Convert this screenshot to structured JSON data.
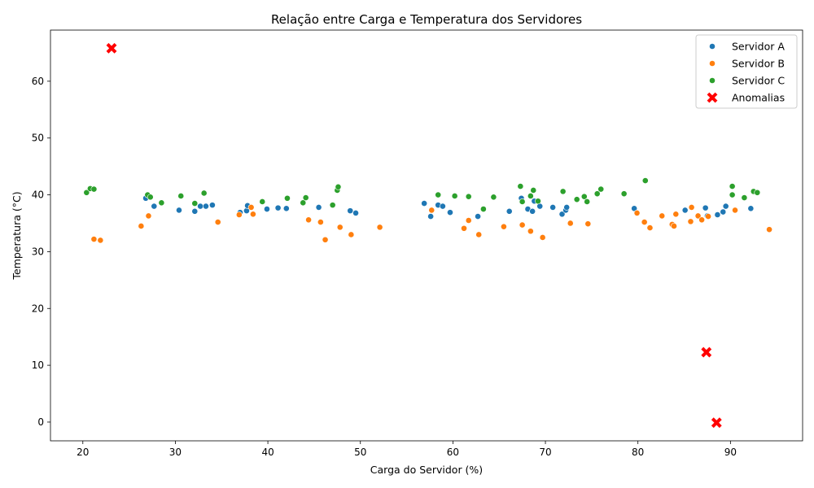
{
  "chart_data": {
    "type": "scatter",
    "title": "Relação entre Carga e Temperatura dos Servidores",
    "xlabel": "Carga do Servidor (%)",
    "ylabel": "Temperatura (°C)",
    "xlim": [
      16.5,
      97.8
    ],
    "ylim": [
      -3.3,
      69.0
    ],
    "xticks": [
      20,
      30,
      40,
      50,
      60,
      70,
      80,
      90
    ],
    "yticks": [
      0,
      10,
      20,
      30,
      40,
      50,
      60
    ],
    "grid": false,
    "legend_position": "top-right",
    "series": [
      {
        "name": "Servidor A",
        "color": "#1f77b4",
        "marker": "circle",
        "points": [
          [
            26.8,
            39.4
          ],
          [
            27.7,
            38.0
          ],
          [
            30.4,
            37.3
          ],
          [
            32.1,
            37.1
          ],
          [
            32.7,
            38.0
          ],
          [
            33.3,
            38.0
          ],
          [
            34.0,
            38.2
          ],
          [
            37.0,
            36.9
          ],
          [
            37.7,
            37.2
          ],
          [
            37.8,
            38.1
          ],
          [
            39.9,
            37.5
          ],
          [
            41.1,
            37.7
          ],
          [
            42.0,
            37.6
          ],
          [
            45.5,
            37.8
          ],
          [
            48.9,
            37.2
          ],
          [
            49.5,
            36.8
          ],
          [
            56.9,
            38.5
          ],
          [
            57.6,
            36.2
          ],
          [
            58.4,
            38.2
          ],
          [
            58.9,
            38.0
          ],
          [
            59.7,
            36.9
          ],
          [
            62.7,
            36.2
          ],
          [
            66.1,
            37.1
          ],
          [
            67.4,
            39.4
          ],
          [
            68.1,
            37.5
          ],
          [
            68.6,
            37.1
          ],
          [
            68.8,
            38.9
          ],
          [
            69.4,
            38.0
          ],
          [
            70.8,
            37.8
          ],
          [
            71.8,
            36.6
          ],
          [
            72.2,
            37.3
          ],
          [
            72.3,
            37.8
          ],
          [
            79.6,
            37.6
          ],
          [
            85.1,
            37.3
          ],
          [
            87.3,
            37.7
          ],
          [
            87.5,
            36.3
          ],
          [
            88.6,
            36.5
          ],
          [
            89.2,
            37.0
          ],
          [
            89.5,
            38.0
          ],
          [
            92.2,
            37.6
          ]
        ]
      },
      {
        "name": "Servidor B",
        "color": "#ff7f0e",
        "marker": "circle",
        "points": [
          [
            21.2,
            32.2
          ],
          [
            21.9,
            32.0
          ],
          [
            26.3,
            34.5
          ],
          [
            27.1,
            36.3
          ],
          [
            34.6,
            35.2
          ],
          [
            36.9,
            36.5
          ],
          [
            38.2,
            37.8
          ],
          [
            38.4,
            36.6
          ],
          [
            44.4,
            35.6
          ],
          [
            45.7,
            35.2
          ],
          [
            46.2,
            32.1
          ],
          [
            47.8,
            34.3
          ],
          [
            49.0,
            33.0
          ],
          [
            52.1,
            34.3
          ],
          [
            57.7,
            37.3
          ],
          [
            61.2,
            34.1
          ],
          [
            61.7,
            35.5
          ],
          [
            62.8,
            33.0
          ],
          [
            65.5,
            34.4
          ],
          [
            67.5,
            34.7
          ],
          [
            68.4,
            33.6
          ],
          [
            69.7,
            32.5
          ],
          [
            72.7,
            35.0
          ],
          [
            74.6,
            34.9
          ],
          [
            79.9,
            36.8
          ],
          [
            80.7,
            35.2
          ],
          [
            81.3,
            34.2
          ],
          [
            82.6,
            36.3
          ],
          [
            83.7,
            34.8
          ],
          [
            83.9,
            34.5
          ],
          [
            84.1,
            36.6
          ],
          [
            85.7,
            35.3
          ],
          [
            85.8,
            37.8
          ],
          [
            86.5,
            36.3
          ],
          [
            86.9,
            35.6
          ],
          [
            87.6,
            36.2
          ],
          [
            90.5,
            37.3
          ],
          [
            94.2,
            33.9
          ]
        ]
      },
      {
        "name": "Servidor C",
        "color": "#2ca02c",
        "marker": "circle",
        "points": [
          [
            20.4,
            40.4
          ],
          [
            20.8,
            41.1
          ],
          [
            21.2,
            41.0
          ],
          [
            27.0,
            40.0
          ],
          [
            27.3,
            39.6
          ],
          [
            28.5,
            38.6
          ],
          [
            30.6,
            39.8
          ],
          [
            32.1,
            38.5
          ],
          [
            33.1,
            40.3
          ],
          [
            39.4,
            38.8
          ],
          [
            42.1,
            39.4
          ],
          [
            43.8,
            38.6
          ],
          [
            44.1,
            39.5
          ],
          [
            47.0,
            38.2
          ],
          [
            47.5,
            40.8
          ],
          [
            47.6,
            41.4
          ],
          [
            58.4,
            40.0
          ],
          [
            60.2,
            39.8
          ],
          [
            61.7,
            39.7
          ],
          [
            63.3,
            37.5
          ],
          [
            64.4,
            39.6
          ],
          [
            67.3,
            41.5
          ],
          [
            67.5,
            38.8
          ],
          [
            68.4,
            39.8
          ],
          [
            68.7,
            40.8
          ],
          [
            69.2,
            38.9
          ],
          [
            71.9,
            40.6
          ],
          [
            73.4,
            39.2
          ],
          [
            74.2,
            39.7
          ],
          [
            74.5,
            38.8
          ],
          [
            75.6,
            40.2
          ],
          [
            76.0,
            41.0
          ],
          [
            78.5,
            40.2
          ],
          [
            80.8,
            42.5
          ],
          [
            90.2,
            40.0
          ],
          [
            90.2,
            41.5
          ],
          [
            91.5,
            39.5
          ],
          [
            92.5,
            40.6
          ],
          [
            92.9,
            40.4
          ]
        ]
      },
      {
        "name": "Anomalias",
        "color": "#ff0000",
        "marker": "x",
        "points": [
          [
            23.1,
            65.8
          ],
          [
            87.4,
            12.3
          ],
          [
            88.5,
            -0.1
          ]
        ]
      }
    ]
  }
}
